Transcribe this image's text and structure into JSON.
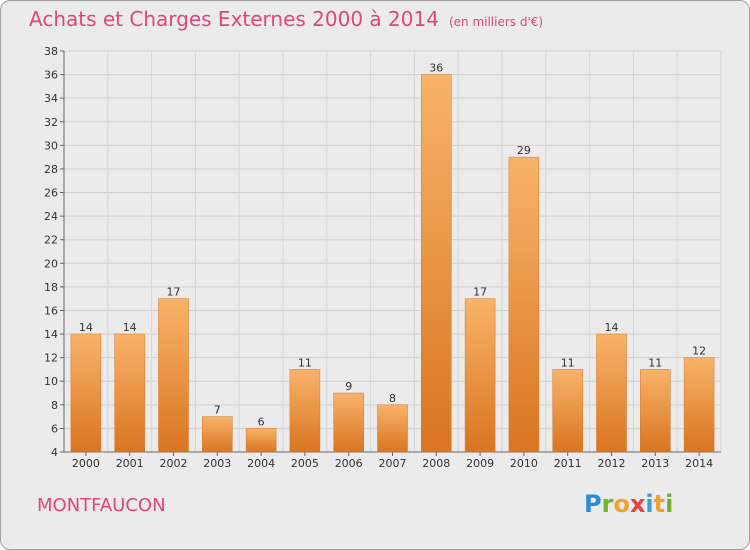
{
  "header": {
    "title": "Achats et Charges Externes 2000 à 2014",
    "unit": "(en milliers d'€)"
  },
  "footer": {
    "commune": "MONTFAUCON",
    "logo": {
      "letters": [
        "P",
        "r",
        "o",
        "x",
        "i",
        "t",
        "i"
      ],
      "colors": [
        "#2e8bd6",
        "#6cb52d",
        "#f2a12c",
        "#e84040",
        "#3aa0d8",
        "#f2a12c",
        "#6cb52d"
      ]
    }
  },
  "colors": {
    "title": "#e0457b",
    "bar": "#f0943a",
    "bar_light": "#f8b36a",
    "bar_dark": "#d97520"
  },
  "chart_data": {
    "type": "bar",
    "categories": [
      "2000",
      "2001",
      "2002",
      "2003",
      "2004",
      "2005",
      "2006",
      "2007",
      "2008",
      "2009",
      "2010",
      "2011",
      "2012",
      "2013",
      "2014"
    ],
    "values": [
      14,
      14,
      17,
      7,
      6,
      11,
      9,
      8,
      36,
      17,
      29,
      11,
      14,
      11,
      12
    ],
    "ylim": [
      4,
      38
    ],
    "yticks": [
      4,
      6,
      8,
      10,
      12,
      14,
      16,
      18,
      20,
      22,
      24,
      26,
      28,
      30,
      32,
      34,
      36,
      38
    ],
    "grid": true
  }
}
